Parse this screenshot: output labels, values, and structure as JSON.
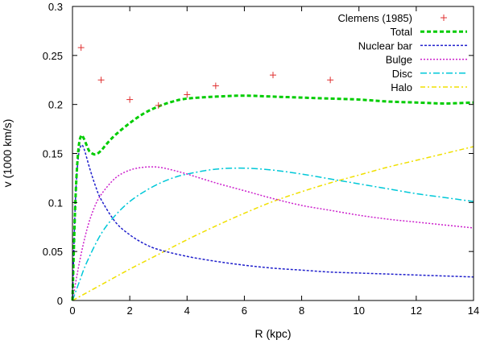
{
  "chart_data": {
    "type": "line",
    "title": "",
    "xlabel": "R (kpc)",
    "ylabel": "v  (1000 km/s)",
    "xlim": [
      0,
      14
    ],
    "ylim": [
      0,
      0.3
    ],
    "x_ticks": [
      0,
      2,
      4,
      6,
      8,
      10,
      12,
      14
    ],
    "y_ticks": [
      0,
      0.05,
      0.1,
      0.15,
      0.2,
      0.25,
      0.3
    ],
    "x_tick_labels": [
      "0",
      "2",
      "4",
      "6",
      "8",
      "10",
      "12",
      "14"
    ],
    "y_tick_labels": [
      "0",
      "0.05",
      "0.1",
      "0.15",
      "0.2",
      "0.25",
      "0.3"
    ],
    "legend_position": "top-right",
    "grid": false,
    "scatter": {
      "name": "Clemens (1985)",
      "color": "#e03030",
      "marker": "plus",
      "x": [
        0.3,
        1,
        2,
        3,
        4,
        5,
        7,
        9
      ],
      "y": [
        0.258,
        0.225,
        0.205,
        0.199,
        0.21,
        0.219,
        0.23,
        0.225
      ]
    },
    "series": [
      {
        "name": "Total",
        "color": "#00cc00",
        "dash": "5,3",
        "width": 3,
        "x": [
          0,
          0.1,
          0.2,
          0.3,
          0.4,
          0.5,
          0.6,
          0.8,
          1.0,
          1.2,
          1.5,
          2,
          2.5,
          3,
          3.5,
          4,
          5,
          6,
          7,
          8,
          9,
          10,
          11,
          12,
          13,
          14
        ],
        "y": [
          0,
          0.1,
          0.152,
          0.168,
          0.165,
          0.158,
          0.152,
          0.149,
          0.153,
          0.16,
          0.169,
          0.181,
          0.191,
          0.198,
          0.203,
          0.206,
          0.208,
          0.209,
          0.208,
          0.207,
          0.206,
          0.205,
          0.203,
          0.202,
          0.201,
          0.202
        ]
      },
      {
        "name": "Nuclear bar",
        "color": "#2020cc",
        "dash": "3,2",
        "width": 1.5,
        "x": [
          0,
          0.1,
          0.2,
          0.3,
          0.4,
          0.6,
          0.8,
          1.0,
          1.5,
          2,
          2.5,
          3,
          4,
          5,
          6,
          7,
          8,
          9,
          10,
          11,
          12,
          13,
          14
        ],
        "y": [
          0,
          0.1,
          0.145,
          0.158,
          0.155,
          0.135,
          0.117,
          0.103,
          0.08,
          0.067,
          0.058,
          0.052,
          0.045,
          0.04,
          0.036,
          0.033,
          0.031,
          0.029,
          0.028,
          0.027,
          0.026,
          0.025,
          0.024
        ]
      },
      {
        "name": "Bulge",
        "color": "#cc20cc",
        "dash": "2,2",
        "width": 1.5,
        "x": [
          0,
          0.25,
          0.5,
          0.75,
          1.0,
          1.5,
          2,
          2.5,
          3,
          3.5,
          4,
          5,
          6,
          7,
          8,
          9,
          10,
          11,
          12,
          13,
          14
        ],
        "y": [
          0,
          0.04,
          0.072,
          0.094,
          0.108,
          0.125,
          0.133,
          0.136,
          0.136,
          0.133,
          0.129,
          0.12,
          0.112,
          0.104,
          0.097,
          0.092,
          0.087,
          0.083,
          0.08,
          0.077,
          0.074
        ]
      },
      {
        "name": "Disc",
        "color": "#00c8d8",
        "dash": "8,3,2,3",
        "width": 1.5,
        "x": [
          0,
          0.25,
          0.5,
          1.0,
          1.5,
          2,
          2.5,
          3,
          3.5,
          4,
          5,
          6,
          7,
          8,
          9,
          10,
          11,
          12,
          13,
          14
        ],
        "y": [
          0,
          0.02,
          0.039,
          0.068,
          0.087,
          0.101,
          0.111,
          0.119,
          0.125,
          0.129,
          0.134,
          0.135,
          0.133,
          0.129,
          0.124,
          0.119,
          0.114,
          0.109,
          0.105,
          0.101
        ]
      },
      {
        "name": "Halo",
        "color": "#f0e000",
        "dash": "6,3,2,3",
        "width": 1.5,
        "x": [
          0,
          1,
          2,
          3,
          4,
          5,
          6,
          7,
          8,
          9,
          10,
          11,
          12,
          13,
          14
        ],
        "y": [
          0,
          0.016,
          0.032,
          0.047,
          0.062,
          0.076,
          0.089,
          0.101,
          0.111,
          0.12,
          0.128,
          0.136,
          0.143,
          0.15,
          0.157
        ]
      }
    ]
  }
}
